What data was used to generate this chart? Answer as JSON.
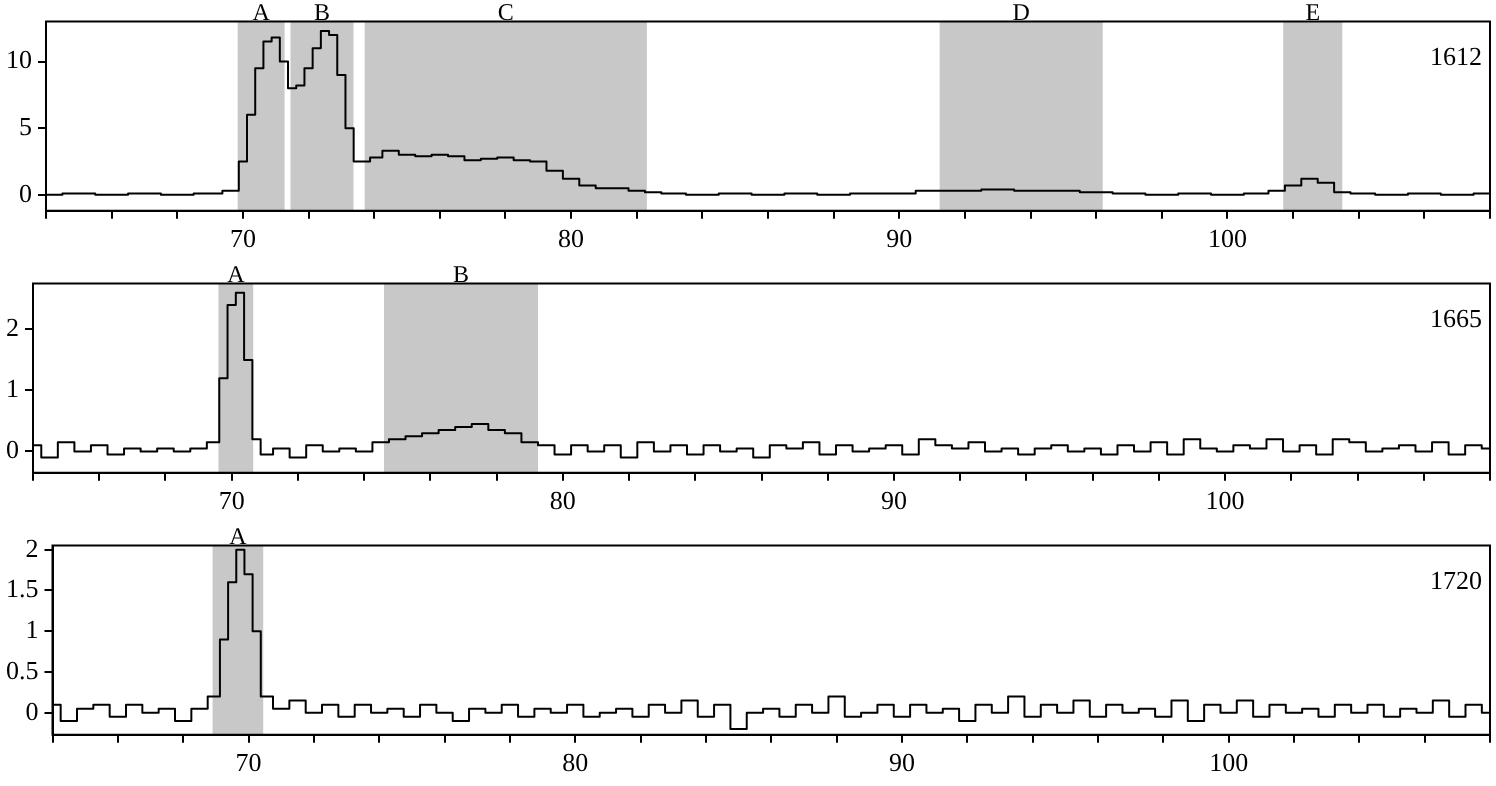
{
  "chart_data": [
    {
      "type": "step",
      "x": [
        64,
        65,
        66,
        67,
        68,
        69,
        69.75,
        70,
        70.25,
        70.5,
        70.75,
        71,
        71.25,
        71.5,
        71.75,
        72,
        72.25,
        72.5,
        72.75,
        73,
        73.25,
        73.5,
        73.75,
        74,
        74.5,
        75,
        75.5,
        76,
        76.5,
        77,
        77.5,
        78,
        78.5,
        79,
        79.5,
        80,
        80.5,
        81,
        81.5,
        82,
        82.5,
        83,
        84,
        85,
        86,
        87,
        88,
        89,
        90,
        91,
        92,
        93,
        94,
        95,
        96,
        97,
        98,
        99,
        100,
        101,
        101.5,
        102,
        102.5,
        103,
        103.5,
        104,
        105,
        106,
        107,
        108
      ],
      "series": [
        {
          "color": "#000000",
          "values": [
            0,
            0.1,
            0,
            0.1,
            0,
            0.1,
            0.3,
            2.5,
            6,
            9.5,
            11.5,
            11.8,
            10,
            8,
            8.2,
            9.5,
            11,
            12.3,
            12,
            9,
            5,
            2.5,
            2.5,
            2.8,
            3.3,
            3.0,
            2.9,
            3.0,
            2.9,
            2.6,
            2.7,
            2.8,
            2.6,
            2.5,
            1.8,
            1.2,
            0.7,
            0.5,
            0.5,
            0.3,
            0.2,
            0.1,
            0,
            0.1,
            0,
            0.1,
            0,
            0.1,
            0.1,
            0.3,
            0.3,
            0.4,
            0.3,
            0.3,
            0.2,
            0.1,
            0,
            0.1,
            0,
            0.1,
            0.3,
            0.7,
            1.2,
            0.9,
            0.2,
            0.1,
            0,
            0.1,
            0,
            0.1
          ]
        }
      ],
      "xlim": [
        64,
        108
      ],
      "ylim": [
        -1.2,
        13
      ],
      "yticks": [
        0,
        5,
        10
      ],
      "xticks": [
        {
          "value": 64,
          "label": null
        },
        {
          "value": 66,
          "label": null
        },
        {
          "value": 68,
          "label": null
        },
        70,
        {
          "value": 72,
          "label": null
        },
        {
          "value": 74,
          "label": null
        },
        {
          "value": 76,
          "label": null
        },
        {
          "value": 78,
          "label": null
        },
        80,
        {
          "value": 82,
          "label": null
        },
        {
          "value": 84,
          "label": null
        },
        {
          "value": 86,
          "label": null
        },
        {
          "value": 88,
          "label": null
        },
        90,
        {
          "value": 92,
          "label": null
        },
        {
          "value": 94,
          "label": null
        },
        {
          "value": 96,
          "label": null
        },
        {
          "value": 98,
          "label": null
        },
        100,
        {
          "value": 102,
          "label": null
        },
        {
          "value": 104,
          "label": null
        },
        {
          "value": 106,
          "label": null
        },
        {
          "value": 108,
          "label": null
        }
      ],
      "bands": [
        {
          "axis": "x",
          "from": 69.84,
          "to": 71.27,
          "label": "A",
          "color": "#c8c8c8"
        },
        {
          "axis": "x",
          "from": 71.45,
          "to": 73.37,
          "label": "B",
          "color": "#c8c8c8"
        },
        {
          "axis": "x",
          "from": 73.71,
          "to": 82.31,
          "label": "C",
          "color": "#c8c8c8"
        },
        {
          "axis": "x",
          "from": 91.23,
          "to": 96.2,
          "label": "D",
          "color": "#c8c8c8"
        },
        {
          "axis": "x",
          "from": 101.7,
          "to": 103.5,
          "label": "E",
          "color": "#c8c8c8"
        }
      ],
      "annotations": [
        "1612"
      ]
    },
    {
      "type": "step",
      "x": [
        64,
        64.5,
        65,
        65.5,
        66,
        66.5,
        67,
        67.5,
        68,
        68.5,
        69,
        69.5,
        69.75,
        70,
        70.25,
        70.5,
        70.75,
        71,
        71.5,
        72,
        72.5,
        73,
        73.5,
        74,
        74.5,
        75,
        75.5,
        76,
        76.5,
        77,
        77.5,
        78,
        78.5,
        79,
        79.5,
        80,
        80.5,
        81,
        81.5,
        82,
        82.5,
        83,
        83.5,
        84,
        84.5,
        85,
        85.5,
        86,
        86.5,
        87,
        87.5,
        88,
        88.5,
        89,
        89.5,
        90,
        90.5,
        91,
        91.5,
        92,
        92.5,
        93,
        93.5,
        94,
        94.5,
        95,
        95.5,
        96,
        96.5,
        97,
        97.5,
        98,
        98.5,
        99,
        99.5,
        100,
        100.5,
        101,
        101.5,
        102,
        102.5,
        103,
        103.5,
        104,
        104.5,
        105,
        105.5,
        106,
        106.5,
        107,
        107.5,
        108
      ],
      "series": [
        {
          "color": "#000000",
          "values": [
            0.1,
            -0.1,
            0.15,
            0,
            0.1,
            -0.05,
            0.05,
            0,
            0.05,
            0,
            0.05,
            0.15,
            1.2,
            2.4,
            2.6,
            1.5,
            0.2,
            -0.05,
            0.05,
            -0.1,
            0.1,
            0,
            0.05,
            0,
            0.15,
            0.2,
            0.25,
            0.3,
            0.35,
            0.4,
            0.45,
            0.35,
            0.3,
            0.15,
            0.1,
            -0.05,
            0.1,
            0,
            0.1,
            -0.1,
            0.15,
            0,
            0.1,
            -0.05,
            0.1,
            0,
            0.05,
            -0.1,
            0.1,
            0.05,
            0.15,
            -0.05,
            0.1,
            0,
            0.05,
            0.1,
            -0.05,
            0.2,
            0.1,
            0.05,
            0.15,
            0,
            0.05,
            -0.05,
            0.05,
            0.1,
            0,
            0.05,
            -0.05,
            0.1,
            0,
            0.15,
            -0.05,
            0.2,
            0.05,
            0,
            0.1,
            0.05,
            0.2,
            0,
            0.1,
            -0.05,
            0.2,
            0.15,
            0,
            0.05,
            0.1,
            0,
            0.15,
            -0.05,
            0.1,
            0.05
          ]
        }
      ],
      "xlim": [
        64,
        108
      ],
      "ylim": [
        -0.35,
        2.75
      ],
      "yticks": [
        0,
        1,
        2
      ],
      "xticks": [
        {
          "value": 64,
          "label": null
        },
        {
          "value": 66,
          "label": null
        },
        {
          "value": 68,
          "label": null
        },
        70,
        {
          "value": 72,
          "label": null
        },
        {
          "value": 74,
          "label": null
        },
        {
          "value": 76,
          "label": null
        },
        {
          "value": 78,
          "label": null
        },
        80,
        {
          "value": 82,
          "label": null
        },
        {
          "value": 84,
          "label": null
        },
        {
          "value": 86,
          "label": null
        },
        {
          "value": 88,
          "label": null
        },
        90,
        {
          "value": 92,
          "label": null
        },
        {
          "value": 94,
          "label": null
        },
        {
          "value": 96,
          "label": null
        },
        {
          "value": 98,
          "label": null
        },
        100,
        {
          "value": 102,
          "label": null
        },
        {
          "value": 104,
          "label": null
        },
        {
          "value": 106,
          "label": null
        },
        {
          "value": 108,
          "label": null
        }
      ],
      "bands": [
        {
          "axis": "x",
          "from": 69.6,
          "to": 70.65,
          "label": "A",
          "color": "#c8c8c8"
        },
        {
          "axis": "x",
          "from": 74.6,
          "to": 79.25,
          "label": "B",
          "color": "#c8c8c8"
        }
      ],
      "annotations": [
        "1665"
      ]
    },
    {
      "type": "step",
      "x": [
        64,
        64.5,
        65,
        65.5,
        66,
        66.5,
        67,
        67.5,
        68,
        68.5,
        69,
        69.25,
        69.5,
        69.75,
        70,
        70.25,
        70.5,
        71,
        71.5,
        72,
        72.5,
        73,
        73.5,
        74,
        74.5,
        75,
        75.5,
        76,
        76.5,
        77,
        77.5,
        78,
        78.5,
        79,
        79.5,
        80,
        80.5,
        81,
        81.5,
        82,
        82.5,
        83,
        83.5,
        84,
        84.5,
        85,
        85.5,
        86,
        86.5,
        87,
        87.5,
        88,
        88.5,
        89,
        89.5,
        90,
        90.5,
        91,
        91.5,
        92,
        92.5,
        93,
        93.5,
        94,
        94.5,
        95,
        95.5,
        96,
        96.5,
        97,
        97.5,
        98,
        98.5,
        99,
        99.5,
        100,
        100.5,
        101,
        101.5,
        102,
        102.5,
        103,
        103.5,
        104,
        104.5,
        105,
        105.5,
        106,
        106.5,
        107,
        107.5,
        108
      ],
      "series": [
        {
          "color": "#000000",
          "values": [
            0.1,
            -0.1,
            0.05,
            0.1,
            -0.05,
            0.1,
            0,
            0.05,
            -0.1,
            0.05,
            0.2,
            0.9,
            1.6,
            2.0,
            1.7,
            1.0,
            0.2,
            0.05,
            0.15,
            0,
            0.1,
            -0.05,
            0.1,
            0,
            0.05,
            -0.05,
            0.1,
            0,
            -0.1,
            0.05,
            0,
            0.1,
            -0.05,
            0.05,
            0,
            0.1,
            -0.05,
            0,
            0.05,
            -0.05,
            0.1,
            0,
            0.15,
            -0.05,
            0.1,
            -0.2,
            0,
            0.05,
            -0.05,
            0.1,
            0,
            0.2,
            -0.05,
            0,
            0.1,
            -0.05,
            0.1,
            0,
            0.05,
            -0.1,
            0.1,
            0,
            0.2,
            -0.05,
            0.1,
            0,
            0.15,
            -0.05,
            0.1,
            0,
            0.05,
            -0.05,
            0.15,
            -0.1,
            0.1,
            0,
            0.15,
            -0.05,
            0.1,
            0,
            0.05,
            -0.05,
            0.1,
            0,
            0.1,
            -0.05,
            0.05,
            0,
            0.15,
            -0.05,
            0.1,
            0
          ]
        }
      ],
      "xlim": [
        64,
        108
      ],
      "ylim": [
        -0.27,
        2.05
      ],
      "yticks": [
        0,
        0.5,
        1,
        1.5,
        2
      ],
      "xticks": [
        {
          "value": 64,
          "label": null
        },
        {
          "value": 66,
          "label": null
        },
        {
          "value": 68,
          "label": null
        },
        70,
        {
          "value": 72,
          "label": null
        },
        {
          "value": 74,
          "label": null
        },
        {
          "value": 76,
          "label": null
        },
        {
          "value": 78,
          "label": null
        },
        80,
        {
          "value": 82,
          "label": null
        },
        {
          "value": 84,
          "label": null
        },
        {
          "value": 86,
          "label": null
        },
        {
          "value": 88,
          "label": null
        },
        90,
        {
          "value": 92,
          "label": null
        },
        {
          "value": 94,
          "label": null
        },
        {
          "value": 96,
          "label": null
        },
        {
          "value": 98,
          "label": null
        },
        100,
        {
          "value": 102,
          "label": null
        },
        {
          "value": 104,
          "label": null
        },
        {
          "value": 106,
          "label": null
        },
        {
          "value": 108,
          "label": null
        }
      ],
      "bands": [
        {
          "axis": "x",
          "from": 68.9,
          "to": 70.45,
          "label": "A",
          "color": "#c8c8c8"
        }
      ],
      "annotations": [
        "1720"
      ]
    }
  ]
}
